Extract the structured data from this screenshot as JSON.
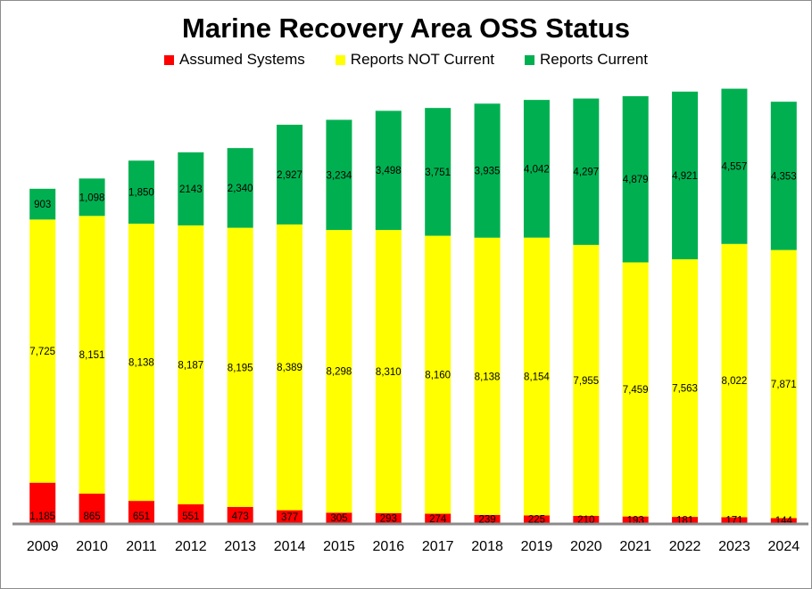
{
  "chart_data": {
    "type": "bar",
    "stacked": true,
    "title": "Marine Recovery Area OSS Status",
    "xlabel": "",
    "ylabel": "",
    "ylim": [
      0,
      13000
    ],
    "grid": false,
    "legend_position": "top",
    "categories": [
      "2009",
      "2010",
      "2011",
      "2012",
      "2013",
      "2014",
      "2015",
      "2016",
      "2017",
      "2018",
      "2019",
      "2020",
      "2021",
      "2022",
      "2023",
      "2024"
    ],
    "series": [
      {
        "name": "Assumed Systems",
        "color": "#ff0000",
        "values": [
          1185,
          865,
          651,
          551,
          473,
          377,
          305,
          293,
          274,
          239,
          225,
          210,
          193,
          181,
          171,
          144
        ],
        "labels": [
          "1,185",
          "865",
          "651",
          "551",
          "473",
          "377",
          "305",
          "293",
          "274",
          "239",
          "225",
          "210",
          "193",
          "181",
          "171",
          "144"
        ]
      },
      {
        "name": "Reports NOT Current",
        "color": "#ffff00",
        "values": [
          7725,
          8151,
          8138,
          8187,
          8195,
          8389,
          8298,
          8310,
          8160,
          8138,
          8154,
          7955,
          7459,
          7563,
          8022,
          7871
        ],
        "labels": [
          "7,725",
          "8,151",
          "8,138",
          "8,187",
          "8,195",
          "8,389",
          "8,298",
          "8,310",
          "8,160",
          "8,138",
          "8,154",
          "7,955",
          "7,459",
          "7,563",
          "8,022",
          "7,871"
        ]
      },
      {
        "name": "Reports Current",
        "color": "#00b050",
        "values": [
          903,
          1098,
          1850,
          2143,
          2340,
          2927,
          3234,
          3498,
          3751,
          3935,
          4042,
          4297,
          4879,
          4921,
          4557,
          4353
        ],
        "labels": [
          "903",
          "1,098",
          "1,850",
          "2143",
          "2,340",
          "2,927",
          "3,234",
          "3,498",
          "3,751",
          "3,935",
          "4,042",
          "4,297",
          "4,879",
          "4,921",
          "4,557",
          "4,353"
        ]
      }
    ]
  }
}
